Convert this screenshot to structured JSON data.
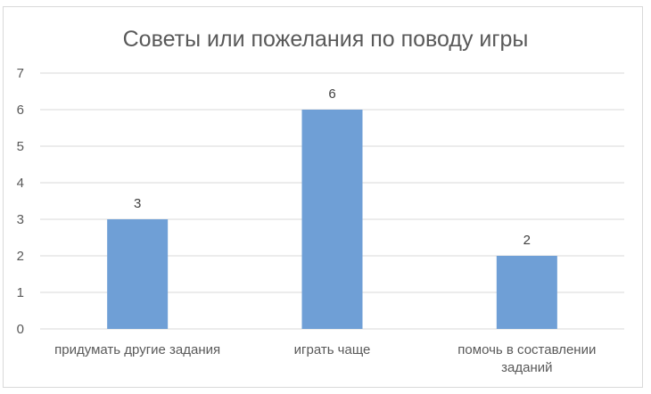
{
  "chart_data": {
    "type": "bar",
    "title": "Советы или пожелания по поводу игры",
    "categories": [
      [
        "придумать другие задания"
      ],
      [
        "играть чаще"
      ],
      [
        "помочь в составлении",
        "заданий"
      ]
    ],
    "values": [
      3,
      6,
      2
    ],
    "ylim": [
      0,
      7
    ],
    "yticks": [
      0,
      1,
      2,
      3,
      4,
      5,
      6,
      7
    ],
    "grid": true,
    "data_labels": true,
    "bar_color": "#6f9fd6",
    "grid_color": "#d9d9d9"
  }
}
